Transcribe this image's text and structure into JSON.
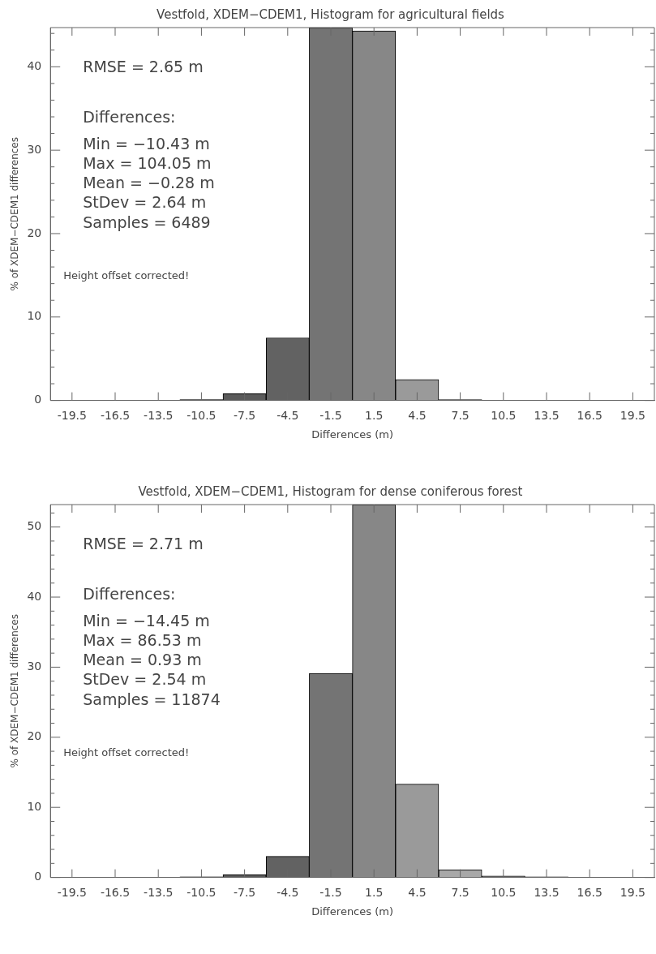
{
  "chart_data": [
    {
      "type": "histogram",
      "title": "Vestfold, XDEM−CDEM1, Histogram for agricultural fields",
      "xlabel": "Differences (m)",
      "ylabel": "% of XDEM−CDEM1 differences",
      "bins": [
        -21,
        -18,
        -15,
        -12,
        -9,
        -6,
        -3,
        0,
        3,
        6,
        9,
        12,
        15,
        18,
        21
      ],
      "values": [
        0,
        0,
        0,
        0.1,
        0.8,
        7.5,
        44.7,
        44.3,
        2.5,
        0.1,
        0,
        0,
        0,
        0
      ],
      "colors": [
        "#4a4a4a",
        "#4e4e4e",
        "#525252",
        "#565656",
        "#5a5a5a",
        "#626262",
        "#747474",
        "#878787",
        "#9a9a9a",
        "#a8a8a8",
        "#b0b0b0",
        "#b8b8b8",
        "#c0c0c0",
        "#c8c8c8"
      ],
      "xlim": [
        -21,
        21
      ],
      "xticks": [
        -19.5,
        -16.5,
        -13.5,
        -10.5,
        -7.5,
        -4.5,
        -1.5,
        1.5,
        4.5,
        7.5,
        10.5,
        13.5,
        16.5,
        19.5
      ],
      "ylim": [
        0,
        44.7
      ],
      "yticks": [
        0,
        {
          "value": 2,
          "label": null
        },
        {
          "value": 4,
          "label": null
        },
        {
          "value": 6,
          "label": null
        },
        {
          "value": 8,
          "label": null
        },
        10,
        {
          "value": 12,
          "label": null
        },
        {
          "value": 14,
          "label": null
        },
        {
          "value": 16,
          "label": null
        },
        {
          "value": 18,
          "label": null
        },
        20,
        {
          "value": 22,
          "label": null
        },
        {
          "value": 24,
          "label": null
        },
        {
          "value": 26,
          "label": null
        },
        {
          "value": 28,
          "label": null
        },
        30,
        {
          "value": 32,
          "label": null
        },
        {
          "value": 34,
          "label": null
        },
        {
          "value": 36,
          "label": null
        },
        {
          "value": 38,
          "label": null
        },
        40,
        {
          "value": 42,
          "label": null
        },
        {
          "value": 44,
          "label": null
        }
      ],
      "annotations": [
        "RMSE = 2.65 m",
        "Differences:",
        "Min = −10.43 m",
        "Max = 104.05 m",
        "Mean = −0.28 m",
        "StDev = 2.64 m",
        "Samples = 6489",
        "Height offset corrected!"
      ]
    },
    {
      "type": "histogram",
      "title": "Vestfold, XDEM−CDEM1, Histogram for dense coniferous forest",
      "xlabel": "Differences (m)",
      "ylabel": "% of XDEM−CDEM1 differences",
      "bins": [
        -21,
        -18,
        -15,
        -12,
        -9,
        -6,
        -3,
        0,
        3,
        6,
        9,
        12,
        15,
        18,
        21
      ],
      "values": [
        0,
        0,
        0,
        0.1,
        0.4,
        3.0,
        29.1,
        53.2,
        13.3,
        1.1,
        0.2,
        0.1,
        0,
        0
      ],
      "colors": [
        "#4a4a4a",
        "#4e4e4e",
        "#525252",
        "#565656",
        "#5a5a5a",
        "#626262",
        "#747474",
        "#878787",
        "#9a9a9a",
        "#a8a8a8",
        "#b0b0b0",
        "#b8b8b8",
        "#c0c0c0",
        "#c8c8c8"
      ],
      "xlim": [
        -21,
        21
      ],
      "xticks": [
        -19.5,
        -16.5,
        -13.5,
        -10.5,
        -7.5,
        -4.5,
        -1.5,
        1.5,
        4.5,
        7.5,
        10.5,
        13.5,
        16.5,
        19.5
      ],
      "ylim": [
        0,
        53.2
      ],
      "yticks": [
        0,
        {
          "value": 2,
          "label": null
        },
        {
          "value": 4,
          "label": null
        },
        {
          "value": 6,
          "label": null
        },
        {
          "value": 8,
          "label": null
        },
        10,
        {
          "value": 12,
          "label": null
        },
        {
          "value": 14,
          "label": null
        },
        {
          "value": 16,
          "label": null
        },
        {
          "value": 18,
          "label": null
        },
        20,
        {
          "value": 22,
          "label": null
        },
        {
          "value": 24,
          "label": null
        },
        {
          "value": 26,
          "label": null
        },
        {
          "value": 28,
          "label": null
        },
        30,
        {
          "value": 32,
          "label": null
        },
        {
          "value": 34,
          "label": null
        },
        {
          "value": 36,
          "label": null
        },
        {
          "value": 38,
          "label": null
        },
        40,
        {
          "value": 42,
          "label": null
        },
        {
          "value": 44,
          "label": null
        },
        {
          "value": 46,
          "label": null
        },
        {
          "value": 48,
          "label": null
        },
        50,
        {
          "value": 52,
          "label": null
        }
      ],
      "annotations": [
        "RMSE = 2.71 m",
        "Differences:",
        "Min = −14.45 m",
        "Max = 86.53 m",
        "Mean = 0.93 m",
        "StDev = 2.54 m",
        "Samples = 11874",
        "Height offset corrected!"
      ]
    }
  ]
}
